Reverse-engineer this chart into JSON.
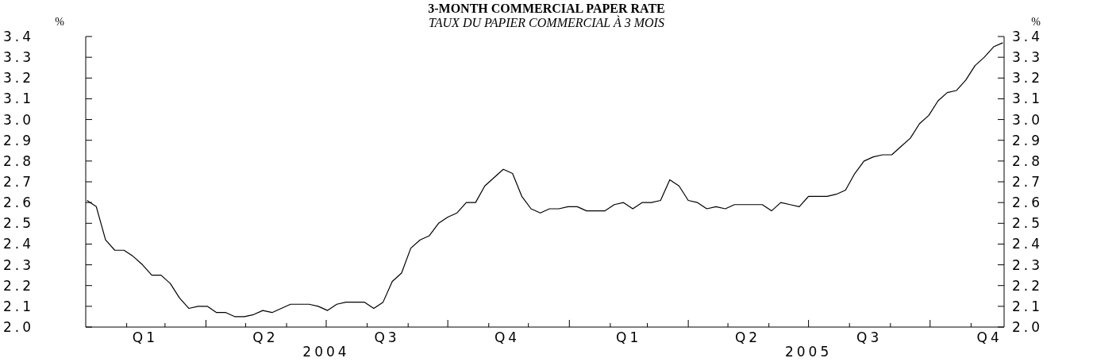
{
  "chart_data": {
    "type": "line",
    "title": "3-MONTH COMMERCIAL PAPER RATE",
    "subtitle": "TAUX DU PAPIER COMMERCIAL À 3 MOIS",
    "ylabel": "%",
    "y2label": "%",
    "x": [
      "2004-01-02",
      "2004-01-09",
      "2004-01-16",
      "2004-01-23",
      "2004-01-30",
      "2004-02-06",
      "2004-02-13",
      "2004-02-20",
      "2004-02-27",
      "2004-03-05",
      "2004-03-12",
      "2004-03-19",
      "2004-03-26",
      "2004-04-02",
      "2004-04-09",
      "2004-04-16",
      "2004-04-23",
      "2004-04-30",
      "2004-05-07",
      "2004-05-14",
      "2004-05-21",
      "2004-05-28",
      "2004-06-04",
      "2004-06-11",
      "2004-06-18",
      "2004-06-25",
      "2004-07-02",
      "2004-07-09",
      "2004-07-16",
      "2004-07-23",
      "2004-07-30",
      "2004-08-06",
      "2004-08-13",
      "2004-08-20",
      "2004-08-27",
      "2004-09-03",
      "2004-09-10",
      "2004-09-17",
      "2004-09-24",
      "2004-10-01",
      "2004-10-08",
      "2004-10-15",
      "2004-10-22",
      "2004-10-29",
      "2004-11-05",
      "2004-11-12",
      "2004-11-19",
      "2004-11-26",
      "2004-12-03",
      "2004-12-10",
      "2004-12-17",
      "2004-12-24",
      "2004-12-31",
      "2005-01-07",
      "2005-01-14",
      "2005-01-21",
      "2005-01-28",
      "2005-02-04",
      "2005-02-11",
      "2005-02-18",
      "2005-02-25",
      "2005-03-04",
      "2005-03-11",
      "2005-03-18",
      "2005-03-25",
      "2005-04-01",
      "2005-04-08",
      "2005-04-15",
      "2005-04-22",
      "2005-04-29",
      "2005-05-06",
      "2005-05-13",
      "2005-05-20",
      "2005-05-27",
      "2005-06-03",
      "2005-06-10",
      "2005-06-17",
      "2005-06-24",
      "2005-07-01",
      "2005-07-08",
      "2005-07-15",
      "2005-07-22",
      "2005-07-29",
      "2005-08-05",
      "2005-08-12",
      "2005-08-19",
      "2005-08-26",
      "2005-09-02",
      "2005-09-09",
      "2005-09-16",
      "2005-09-23",
      "2005-09-30",
      "2005-10-07",
      "2005-10-14",
      "2005-10-21",
      "2005-10-28",
      "2005-11-04",
      "2005-11-11",
      "2005-11-18",
      "2005-11-25"
    ],
    "series": [
      {
        "color": "#000000",
        "values": [
          2.61,
          2.58,
          2.42,
          2.37,
          2.37,
          2.34,
          2.3,
          2.25,
          2.25,
          2.21,
          2.14,
          2.09,
          2.1,
          2.1,
          2.07,
          2.07,
          2.05,
          2.05,
          2.06,
          2.08,
          2.07,
          2.09,
          2.11,
          2.11,
          2.11,
          2.1,
          2.08,
          2.11,
          2.12,
          2.12,
          2.12,
          2.09,
          2.12,
          2.22,
          2.26,
          2.38,
          2.42,
          2.44,
          2.5,
          2.53,
          2.55,
          2.6,
          2.6,
          2.68,
          2.72,
          2.76,
          2.74,
          2.63,
          2.57,
          2.55,
          2.57,
          2.57,
          2.58,
          2.58,
          2.56,
          2.56,
          2.56,
          2.59,
          2.6,
          2.57,
          2.6,
          2.6,
          2.61,
          2.71,
          2.68,
          2.61,
          2.6,
          2.57,
          2.58,
          2.57,
          2.59,
          2.59,
          2.59,
          2.59,
          2.56,
          2.6,
          2.59,
          2.58,
          2.63,
          2.63,
          2.63,
          2.64,
          2.66,
          2.74,
          2.8,
          2.82,
          2.83,
          2.83,
          2.87,
          2.91,
          2.98,
          3.02,
          3.09,
          3.13,
          3.14,
          3.19,
          3.26,
          3.3,
          3.35,
          3.37
        ]
      }
    ],
    "xlim": [
      "2004-01-01",
      "2005-11-26"
    ],
    "xticks": [
      {
        "value": "2004-02-01",
        "label": null
      },
      {
        "value": "2004-02-15",
        "label": "Q1"
      },
      {
        "value": "2004-03-01",
        "label": null
      },
      {
        "value": "2004-04-01",
        "label": null
      },
      {
        "value": "2004-05-01",
        "label": null
      },
      {
        "value": "2004-05-16",
        "label": "Q2"
      },
      {
        "value": "2004-06-01",
        "label": null
      },
      {
        "value": "2004-07-01",
        "label": null
      },
      {
        "value": "2004-08-01",
        "label": null
      },
      {
        "value": "2004-08-16",
        "label": "Q3"
      },
      {
        "value": "2004-09-01",
        "label": null
      },
      {
        "value": "2004-10-01",
        "label": null
      },
      {
        "value": "2004-11-01",
        "label": null
      },
      {
        "value": "2004-11-15",
        "label": "Q4"
      },
      {
        "value": "2004-12-01",
        "label": null
      },
      {
        "value": "2005-01-01",
        "label": null
      },
      {
        "value": "2005-02-01",
        "label": null
      },
      {
        "value": "2005-02-15",
        "label": "Q1"
      },
      {
        "value": "2005-03-01",
        "label": null
      },
      {
        "value": "2005-04-01",
        "label": null
      },
      {
        "value": "2005-05-01",
        "label": null
      },
      {
        "value": "2005-05-16",
        "label": "Q2"
      },
      {
        "value": "2005-06-01",
        "label": null
      },
      {
        "value": "2005-07-01",
        "label": null
      },
      {
        "value": "2005-08-01",
        "label": null
      },
      {
        "value": "2005-08-16",
        "label": "Q3"
      },
      {
        "value": "2005-09-01",
        "label": null
      },
      {
        "value": "2005-10-01",
        "label": null
      },
      {
        "value": "2005-11-01",
        "label": null
      },
      {
        "value": "2005-11-15",
        "label": "Q4"
      }
    ],
    "ylim": [
      2.0,
      3.4
    ],
    "yticks": [
      {
        "value": 2.0,
        "label": "2.0"
      },
      2.1,
      2.2,
      2.3,
      2.4,
      2.5,
      2.6,
      2.7,
      2.8,
      2.9,
      {
        "value": 3.0,
        "label": "3.0"
      },
      3.1,
      3.2,
      3.3,
      3.4
    ],
    "y2lim": [
      2.0,
      3.4
    ],
    "y2ticks": [
      {
        "value": 2.0,
        "label": "2.0"
      },
      2.1,
      2.2,
      2.3,
      2.4,
      2.5,
      2.6,
      2.7,
      2.8,
      2.9,
      {
        "value": 3.0,
        "label": "3.0"
      },
      3.1,
      3.2,
      3.3,
      3.4
    ],
    "annotations": [
      "2004",
      "2005"
    ],
    "grid": false,
    "marker": "none",
    "line_style": "solid"
  }
}
